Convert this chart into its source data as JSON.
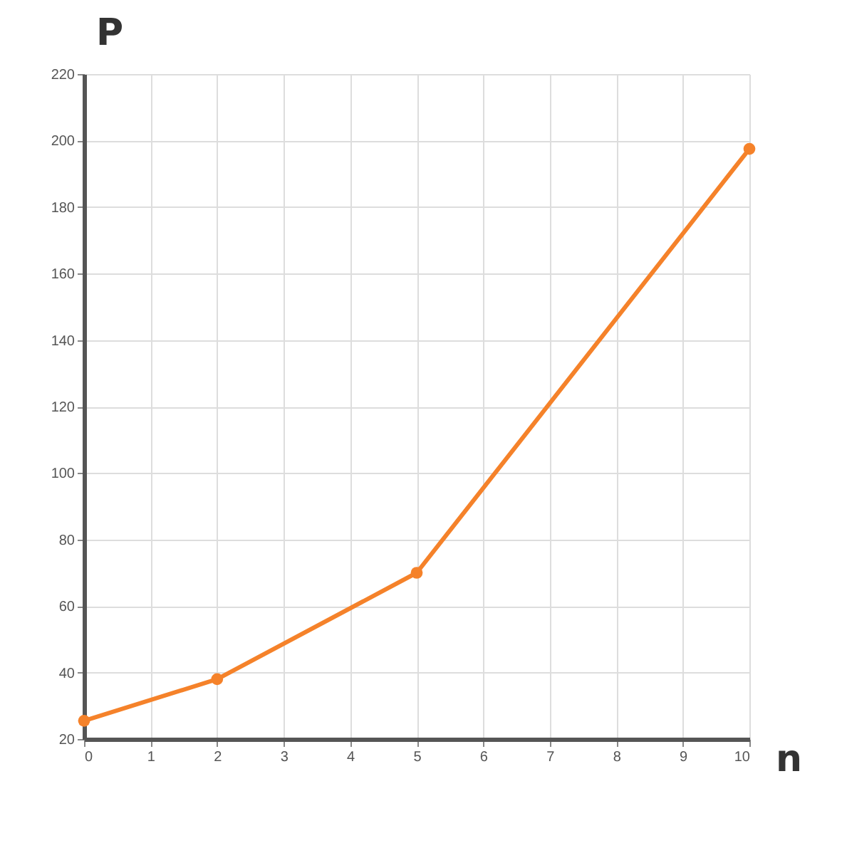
{
  "chart_data": {
    "type": "line",
    "xlabel": "n",
    "ylabel": "P",
    "x": [
      0,
      2,
      5,
      10
    ],
    "series": [
      {
        "color": "#f5822a",
        "values": [
          25.5,
          38,
          70,
          197.5
        ]
      }
    ],
    "xlim": [
      0,
      10
    ],
    "xticks": [
      0,
      1,
      2,
      3,
      4,
      5,
      6,
      7,
      8,
      9,
      10
    ],
    "ylim": [
      20,
      220
    ],
    "yticks": [
      20,
      40,
      60,
      80,
      100,
      120,
      140,
      160,
      180,
      200,
      220
    ],
    "grid": true,
    "marker": "circle",
    "line_style": "solid"
  }
}
